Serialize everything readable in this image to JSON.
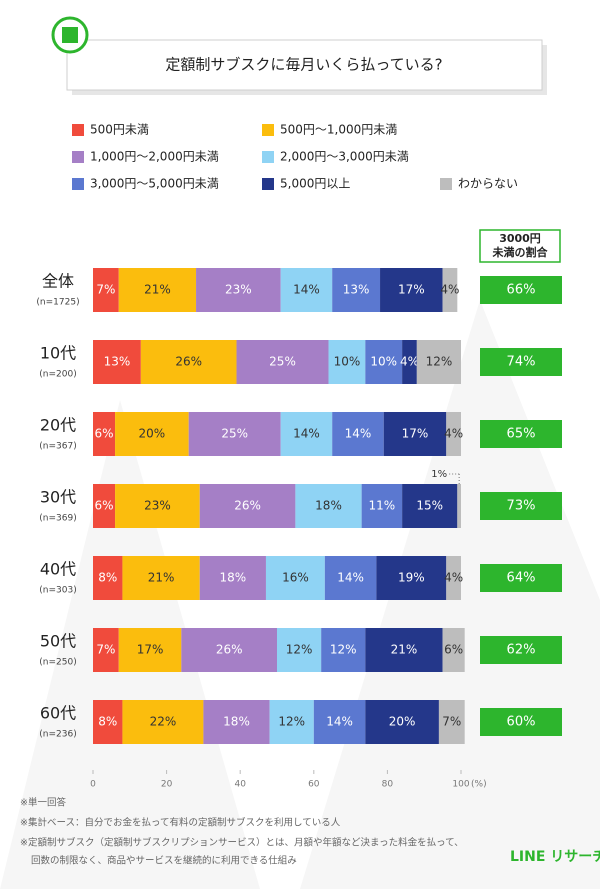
{
  "chart_data": {
    "type": "stacked-bar-horizontal",
    "title": "定額制サブスクに毎月いくら払っている?",
    "categories": [
      "全体",
      "10代",
      "20代",
      "30代",
      "40代",
      "50代",
      "60代"
    ],
    "sample_sizes": [
      "(n=1725)",
      "(n=200)",
      "(n=367)",
      "(n=369)",
      "(n=303)",
      "(n=250)",
      "(n=236)"
    ],
    "series": [
      {
        "name": "500円未満",
        "color": "#f04b3c",
        "label_color": "#ffffff",
        "values": [
          7,
          13,
          6,
          6,
          8,
          7,
          8
        ],
        "value_labels": [
          "7%",
          "13%",
          "6%",
          "6%",
          "8%",
          "7%",
          "8%"
        ]
      },
      {
        "name": "500円〜1,000円未満",
        "color": "#fbbd0d",
        "label_color": "#333333",
        "values": [
          21,
          26,
          20,
          23,
          21,
          17,
          22
        ],
        "value_labels": [
          "21%",
          "26%",
          "20%",
          "23%",
          "21%",
          "17%",
          "22%"
        ]
      },
      {
        "name": "1,000円〜2,000円未満",
        "color": "#a57fc6",
        "label_color": "#ffffff",
        "values": [
          23,
          25,
          25,
          26,
          18,
          26,
          18
        ],
        "value_labels": [
          "23%",
          "25%",
          "25%",
          "26%",
          "18%",
          "26%",
          "18%"
        ]
      },
      {
        "name": "2,000円〜3,000円未満",
        "color": "#8fd3f4",
        "label_color": "#333333",
        "values": [
          14,
          10,
          14,
          18,
          16,
          12,
          12
        ],
        "value_labels": [
          "14%",
          "10%",
          "14%",
          "18%",
          "16%",
          "12%",
          "12%"
        ]
      },
      {
        "name": "3,000円〜5,000円未満",
        "color": "#5b78d0",
        "label_color": "#ffffff",
        "values": [
          13,
          10,
          14,
          11,
          14,
          12,
          14
        ],
        "value_labels": [
          "13%",
          "10%",
          "14%",
          "11%",
          "14%",
          "12%",
          "14%"
        ]
      },
      {
        "name": "5,000円以上",
        "color": "#24378a",
        "label_color": "#ffffff",
        "values": [
          17,
          4,
          17,
          15,
          19,
          21,
          20
        ],
        "value_labels": [
          "17%",
          "4%",
          "17%",
          "15%",
          "19%",
          "21%",
          "20%"
        ]
      },
      {
        "name": "わからない",
        "color": "#bdbdbd",
        "label_color": "#333333",
        "values": [
          4,
          12,
          4,
          1,
          4,
          6,
          7
        ],
        "value_labels": [
          "4%",
          "12%",
          "4%",
          "1%",
          "4%",
          "6%",
          "7%"
        ]
      }
    ],
    "xlim": [
      0,
      100
    ],
    "xticks": [
      0,
      20,
      40,
      60,
      80,
      100
    ],
    "x_unit": "(%)",
    "share_header": [
      "3000円",
      "未満の割合"
    ],
    "share_color": "#2db52d",
    "share_values": [
      66,
      74,
      65,
      73,
      64,
      62,
      60
    ],
    "share_labels": [
      "66%",
      "74%",
      "65%",
      "73%",
      "64%",
      "62%",
      "60%"
    ],
    "notes": [
      "※単一回答",
      "※集計ベース：自分でお金を払って有料の定額制サブスクを利用している人",
      "※定額制サブスク（定額制サブスクリプションサービス）とは、月額や年額など決まった料金を払って、",
      "回数の制限なく、商品やサービスを継続的に利用できる仕組み"
    ],
    "brand": "LINE リサーチ"
  }
}
